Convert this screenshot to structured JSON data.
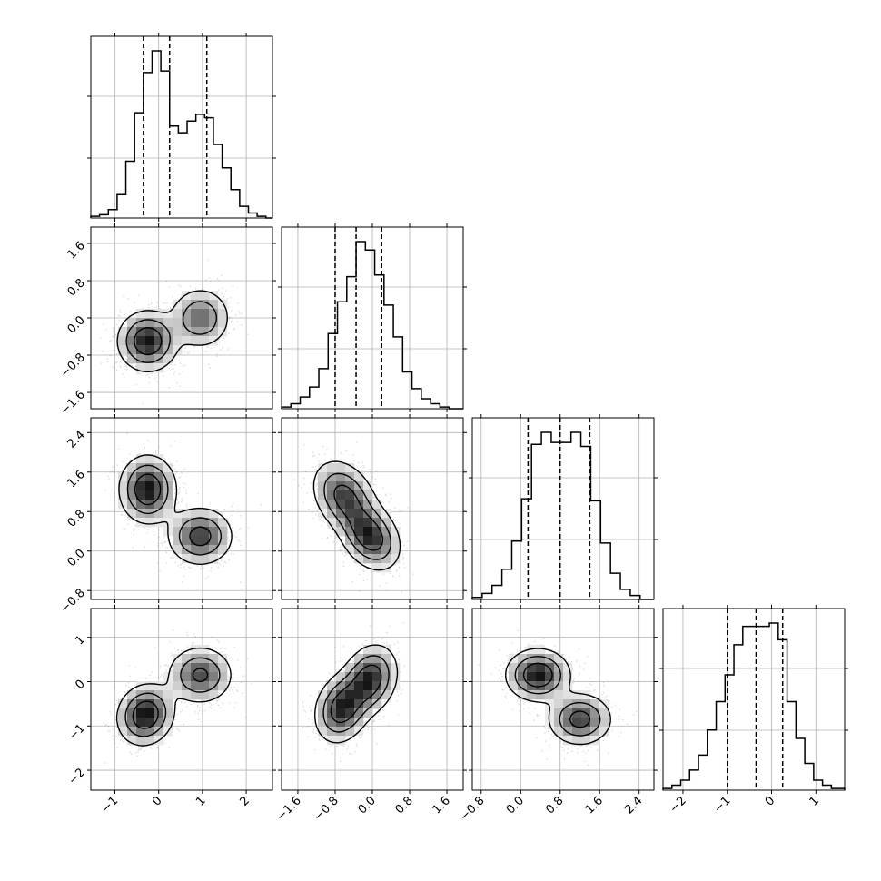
{
  "chart_data": {
    "type": "corner",
    "n_params": 4,
    "labels": [
      "",
      "",
      "",
      ""
    ],
    "grid": true,
    "ranges": [
      [
        -1.55,
        2.6
      ],
      [
        -1.95,
        1.95
      ],
      [
        -0.98,
        2.7
      ],
      [
        -2.45,
        1.65
      ]
    ],
    "ticks": [
      {
        "values": [
          -1,
          0,
          1,
          2
        ],
        "labels": [
          "−1",
          "0",
          "1",
          "2"
        ]
      },
      {
        "values": [
          -1.6,
          -0.8,
          0.0,
          0.8,
          1.6
        ],
        "labels": [
          "−1.6",
          "−0.8",
          "0.0",
          "0.8",
          "1.6"
        ]
      },
      {
        "values": [
          -0.8,
          0.0,
          0.8,
          1.6,
          2.4
        ],
        "labels": [
          "−0.8",
          "0.0",
          "0.8",
          "1.6",
          "2.4"
        ]
      },
      {
        "values": [
          -2,
          -1,
          0,
          1
        ],
        "labels": [
          "−2",
          "−1",
          "0",
          "1"
        ]
      }
    ],
    "quantiles": [
      [
        -0.35,
        0.25,
        1.1
      ],
      [
        -0.8,
        -0.35,
        0.2
      ],
      [
        0.15,
        0.8,
        1.4
      ],
      [
        -1.0,
        -0.35,
        0.25
      ]
    ],
    "histograms": [
      {
        "bin_edges": [
          -1.55,
          -1.35,
          -1.15,
          -0.95,
          -0.75,
          -0.55,
          -0.35,
          -0.15,
          0.05,
          0.25,
          0.45,
          0.65,
          0.85,
          1.05,
          1.25,
          1.45,
          1.65,
          1.85,
          2.05,
          2.25,
          2.45,
          2.6
        ],
        "counts": [
          1,
          2,
          5,
          14,
          34,
          63,
          87,
          100,
          88,
          55,
          51,
          58,
          62,
          60,
          44,
          30,
          17,
          7,
          3,
          1,
          0
        ]
      },
      {
        "bin_edges": [
          -1.95,
          -1.75,
          -1.55,
          -1.35,
          -1.15,
          -0.95,
          -0.75,
          -0.55,
          -0.35,
          -0.15,
          0.05,
          0.25,
          0.45,
          0.65,
          0.85,
          1.05,
          1.25,
          1.45,
          1.65,
          1.95
        ],
        "counts": [
          1,
          3,
          7,
          13,
          24,
          45,
          64,
          79,
          100,
          95,
          80,
          62,
          43,
          22,
          12,
          6,
          3,
          1,
          0
        ]
      },
      {
        "bin_edges": [
          -0.98,
          -0.78,
          -0.58,
          -0.38,
          -0.18,
          0.02,
          0.22,
          0.42,
          0.62,
          0.82,
          1.02,
          1.22,
          1.42,
          1.62,
          1.82,
          2.02,
          2.22,
          2.42,
          2.7
        ],
        "counts": [
          1,
          3,
          7,
          15,
          29,
          50,
          77,
          83,
          78,
          78,
          83,
          76,
          49,
          28,
          13,
          5,
          2,
          0
        ]
      },
      {
        "bin_edges": [
          -2.45,
          -2.25,
          -2.05,
          -1.85,
          -1.65,
          -1.45,
          -1.25,
          -1.05,
          -0.85,
          -0.65,
          -0.45,
          -0.25,
          -0.05,
          0.15,
          0.35,
          0.55,
          0.75,
          0.95,
          1.15,
          1.35,
          1.65
        ],
        "counts": [
          1,
          3,
          6,
          12,
          21,
          36,
          53,
          69,
          87,
          98,
          98,
          98,
          100,
          90,
          53,
          31,
          16,
          6,
          3,
          1
        ]
      }
    ],
    "hist_y_gridlines_fraction": [
      0.33,
      0.67
    ],
    "joint_modes": [
      {
        "pair": [
          0,
          1
        ],
        "modes": [
          {
            "x": -0.25,
            "y": -0.5,
            "sx": 0.35,
            "sy": 0.33,
            "w": 0.6,
            "rho": 0.0
          },
          {
            "x": 0.95,
            "y": 0.0,
            "sx": 0.35,
            "sy": 0.33,
            "w": 0.4,
            "rho": 0.0
          }
        ]
      },
      {
        "pair": [
          0,
          2
        ],
        "modes": [
          {
            "x": -0.25,
            "y": 1.25,
            "sx": 0.33,
            "sy": 0.35,
            "w": 0.55,
            "rho": 0.0
          },
          {
            "x": 0.95,
            "y": 0.3,
            "sx": 0.38,
            "sy": 0.3,
            "w": 0.45,
            "rho": 0.0
          }
        ]
      },
      {
        "pair": [
          1,
          2
        ],
        "modes": [
          {
            "x": -0.6,
            "y": 1.1,
            "sx": 0.35,
            "sy": 0.38,
            "w": 0.5,
            "rho": -0.3
          },
          {
            "x": -0.05,
            "y": 0.3,
            "sx": 0.33,
            "sy": 0.35,
            "w": 0.5,
            "rho": -0.3
          }
        ]
      },
      {
        "pair": [
          0,
          3
        ],
        "modes": [
          {
            "x": -0.3,
            "y": -0.75,
            "sx": 0.33,
            "sy": 0.35,
            "w": 0.55,
            "rho": 0.1
          },
          {
            "x": 0.95,
            "y": 0.15,
            "sx": 0.38,
            "sy": 0.33,
            "w": 0.45,
            "rho": 0.0
          }
        ]
      },
      {
        "pair": [
          1,
          3
        ],
        "modes": [
          {
            "x": -0.65,
            "y": -0.6,
            "sx": 0.3,
            "sy": 0.4,
            "w": 0.5,
            "rho": 0.2
          },
          {
            "x": -0.05,
            "y": 0.05,
            "sx": 0.3,
            "sy": 0.4,
            "w": 0.5,
            "rho": 0.2
          }
        ]
      },
      {
        "pair": [
          2,
          3
        ],
        "modes": [
          {
            "x": 0.35,
            "y": 0.15,
            "sx": 0.33,
            "sy": 0.3,
            "w": 0.55,
            "rho": 0.0
          },
          {
            "x": 1.2,
            "y": -0.85,
            "sx": 0.33,
            "sy": 0.3,
            "w": 0.45,
            "rho": 0.0
          }
        ]
      }
    ],
    "contour_levels_fraction_of_peak": [
      0.14,
      0.38,
      0.68
    ],
    "colors": {
      "scatter": "#8c8c8c",
      "line": "#000000",
      "grid": "#b0b0b0",
      "frame": "#000000"
    }
  }
}
